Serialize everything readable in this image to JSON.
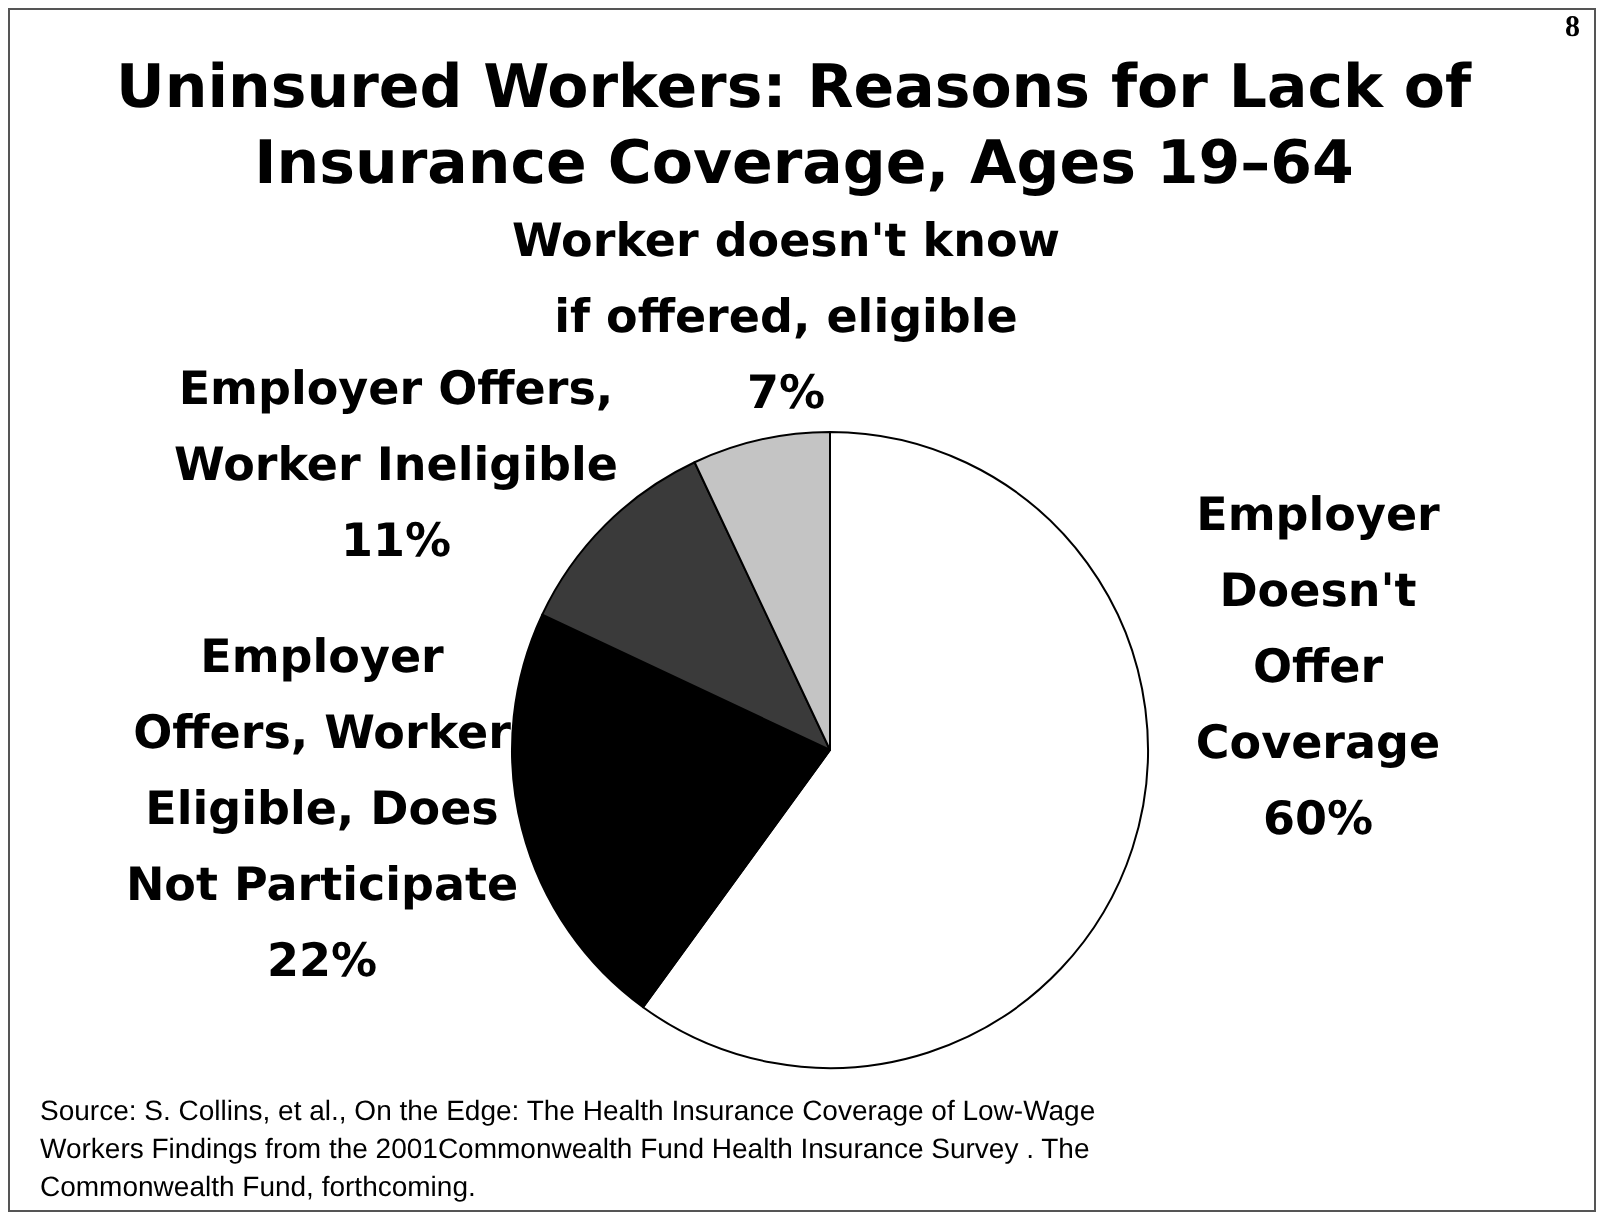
{
  "chart_data": {
    "type": "pie",
    "title": "Uninsured Workers: Reasons for Lack of Insurance Coverage, Ages 19–64",
    "categories": [
      "Employer Doesn't Offer Coverage",
      "Employer Offers, Worker Eligible, Does Not Participate",
      "Employer Offers, Worker Ineligible",
      "Worker doesn't know if offered, eligible"
    ],
    "values": [
      60,
      22,
      11,
      7
    ],
    "value_labels": [
      "60%",
      "22%",
      "11%",
      "7%"
    ],
    "colors": [
      "#ffffff",
      "#000000",
      "#3a3a3a",
      "#c4c4c4"
    ],
    "annotations": [
      "8",
      "Source: S. Collins, et al., On the Edge: The Health Insurance Coverage of Low-Wage Workers Findings from the 2001Commonwealth Fund Health Insurance Survey . The Commonwealth Fund, forthcoming."
    ]
  }
}
